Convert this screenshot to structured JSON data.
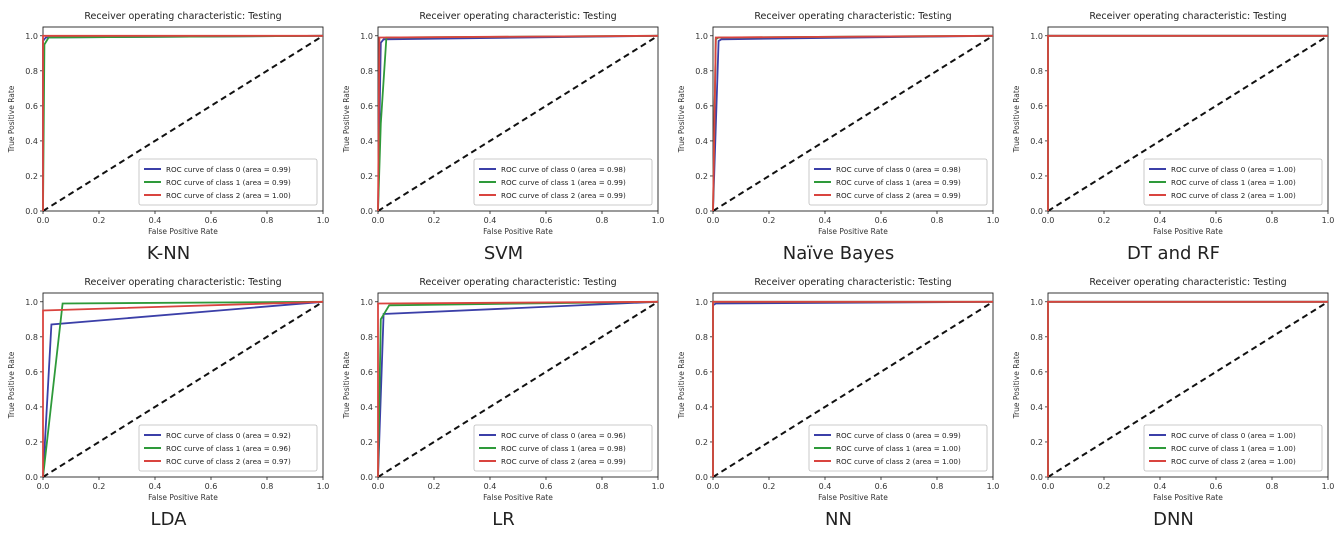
{
  "chart_data": [
    {
      "type": "line",
      "caption": "K-NN",
      "title": "Receiver operating characteristic: Testing",
      "xlabel": "False Positive Rate",
      "ylabel": "True Positive Rate",
      "xlim": [
        0,
        1.0
      ],
      "ylim": [
        0,
        1.05
      ],
      "xticks": [
        "0.0",
        "0.2",
        "0.4",
        "0.6",
        "0.8",
        "1.0"
      ],
      "yticks": [
        "0.0",
        "0.2",
        "0.4",
        "0.6",
        "0.8",
        "1.0"
      ],
      "legend_position": "lower-right",
      "series": [
        {
          "name": "ROC curve of class 0 (area = 0.99)",
          "color": "#3b3fa8",
          "x": [
            0,
            0,
            0.01,
            1.0
          ],
          "y": [
            0,
            0.97,
            0.99,
            1.0
          ]
        },
        {
          "name": "ROC curve of class 1 (area = 0.99)",
          "color": "#2e9a3a",
          "x": [
            0,
            0.005,
            0.02,
            1.0
          ],
          "y": [
            0,
            0.95,
            0.99,
            1.0
          ]
        },
        {
          "name": "ROC curve of class 2 (area = 1.00)",
          "color": "#d9443f",
          "x": [
            0,
            0,
            1.0
          ],
          "y": [
            0,
            1.0,
            1.0
          ]
        }
      ]
    },
    {
      "type": "line",
      "caption": "SVM",
      "title": "Receiver operating characteristic: Testing",
      "xlabel": "False Positive Rate",
      "ylabel": "True Positive Rate",
      "xlim": [
        0,
        1.0
      ],
      "ylim": [
        0,
        1.05
      ],
      "xticks": [
        "0.0",
        "0.2",
        "0.4",
        "0.6",
        "0.8",
        "1.0"
      ],
      "yticks": [
        "0.0",
        "0.2",
        "0.4",
        "0.6",
        "0.8",
        "1.0"
      ],
      "legend_position": "lower-right",
      "series": [
        {
          "name": "ROC curve of class 0 (area = 0.98)",
          "color": "#3b3fa8",
          "x": [
            0,
            0.01,
            0.02,
            1.0
          ],
          "y": [
            0,
            0.96,
            0.98,
            1.0
          ]
        },
        {
          "name": "ROC curve of class 1 (area = 0.99)",
          "color": "#2e9a3a",
          "x": [
            0,
            0.01,
            0.03,
            1.0
          ],
          "y": [
            0,
            0.5,
            0.99,
            1.0
          ]
        },
        {
          "name": "ROC curve of class 2 (area = 0.99)",
          "color": "#d9443f",
          "x": [
            0,
            0.005,
            1.0
          ],
          "y": [
            0,
            0.99,
            1.0
          ]
        }
      ]
    },
    {
      "type": "line",
      "caption": "Naïve Bayes",
      "title": "Receiver operating characteristic: Testing",
      "xlabel": "False Positive Rate",
      "ylabel": "True Positive Rate",
      "xlim": [
        0,
        1.0
      ],
      "ylim": [
        0,
        1.05
      ],
      "xticks": [
        "0.0",
        "0.2",
        "0.4",
        "0.6",
        "0.8",
        "1.0"
      ],
      "yticks": [
        "0.0",
        "0.2",
        "0.4",
        "0.6",
        "0.8",
        "1.0"
      ],
      "legend_position": "lower-right",
      "series": [
        {
          "name": "ROC curve of class 0 (area = 0.98)",
          "color": "#3b3fa8",
          "x": [
            0,
            0.02,
            0.03,
            1.0
          ],
          "y": [
            0,
            0.97,
            0.98,
            1.0
          ]
        },
        {
          "name": "ROC curve of class 1 (area = 0.99)",
          "color": "#2e9a3a",
          "x": [
            0,
            0.01,
            0.02,
            1.0
          ],
          "y": [
            0,
            0.98,
            0.99,
            1.0
          ]
        },
        {
          "name": "ROC curve of class 2 (area = 0.99)",
          "color": "#d9443f",
          "x": [
            0,
            0.01,
            1.0
          ],
          "y": [
            0,
            0.99,
            1.0
          ]
        }
      ]
    },
    {
      "type": "line",
      "caption": "DT and RF",
      "title": "Receiver operating characteristic: Testing",
      "xlabel": "False Positive Rate",
      "ylabel": "True Positive Rate",
      "xlim": [
        0,
        1.0
      ],
      "ylim": [
        0,
        1.05
      ],
      "xticks": [
        "0.0",
        "0.2",
        "0.4",
        "0.6",
        "0.8",
        "1.0"
      ],
      "yticks": [
        "0.0",
        "0.2",
        "0.4",
        "0.6",
        "0.8",
        "1.0"
      ],
      "legend_position": "lower-right",
      "series": [
        {
          "name": "ROC curve of class 0 (area = 1.00)",
          "color": "#3b3fa8",
          "x": [
            0,
            0,
            1.0
          ],
          "y": [
            0,
            1.0,
            1.0
          ]
        },
        {
          "name": "ROC curve of class 1 (area = 1.00)",
          "color": "#2e9a3a",
          "x": [
            0,
            0,
            1.0
          ],
          "y": [
            0,
            1.0,
            1.0
          ]
        },
        {
          "name": "ROC curve of class 2 (area = 1.00)",
          "color": "#d9443f",
          "x": [
            0,
            0,
            1.0
          ],
          "y": [
            0,
            1.0,
            1.0
          ]
        }
      ]
    },
    {
      "type": "line",
      "caption": "LDA",
      "title": "Receiver operating characteristic: Testing",
      "xlabel": "False Positive Rate",
      "ylabel": "True Positive Rate",
      "xlim": [
        0,
        1.0
      ],
      "ylim": [
        0,
        1.05
      ],
      "xticks": [
        "0.0",
        "0.2",
        "0.4",
        "0.6",
        "0.8",
        "1.0"
      ],
      "yticks": [
        "0.0",
        "0.2",
        "0.4",
        "0.6",
        "0.8",
        "1.0"
      ],
      "legend_position": "lower-right",
      "series": [
        {
          "name": "ROC curve of class 0 (area = 0.92)",
          "color": "#3b3fa8",
          "x": [
            0,
            0.03,
            1.0
          ],
          "y": [
            0,
            0.87,
            1.0
          ]
        },
        {
          "name": "ROC curve of class 1 (area = 0.96)",
          "color": "#2e9a3a",
          "x": [
            0,
            0.07,
            1.0
          ],
          "y": [
            0,
            0.99,
            1.0
          ]
        },
        {
          "name": "ROC curve of class 2 (area = 0.97)",
          "color": "#d9443f",
          "x": [
            0,
            0,
            1.0
          ],
          "y": [
            0,
            0.95,
            1.0
          ]
        }
      ]
    },
    {
      "type": "line",
      "caption": "LR",
      "title": "Receiver operating characteristic: Testing",
      "xlabel": "False Positive Rate",
      "ylabel": "True Positive Rate",
      "xlim": [
        0,
        1.0
      ],
      "ylim": [
        0,
        1.05
      ],
      "xticks": [
        "0.0",
        "0.2",
        "0.4",
        "0.6",
        "0.8",
        "1.0"
      ],
      "yticks": [
        "0.0",
        "0.2",
        "0.4",
        "0.6",
        "0.8",
        "1.0"
      ],
      "legend_position": "lower-right",
      "series": [
        {
          "name": "ROC curve of class 0 (area = 0.96)",
          "color": "#3b3fa8",
          "x": [
            0,
            0.02,
            1.0
          ],
          "y": [
            0,
            0.93,
            1.0
          ]
        },
        {
          "name": "ROC curve of class 1 (area = 0.98)",
          "color": "#2e9a3a",
          "x": [
            0,
            0.01,
            0.04,
            1.0
          ],
          "y": [
            0,
            0.9,
            0.98,
            1.0
          ]
        },
        {
          "name": "ROC curve of class 2 (area = 0.99)",
          "color": "#d9443f",
          "x": [
            0,
            0,
            1.0
          ],
          "y": [
            0,
            0.99,
            1.0
          ]
        }
      ]
    },
    {
      "type": "line",
      "caption": "NN",
      "title": "Receiver operating characteristic: Testing",
      "xlabel": "False Positive Rate",
      "ylabel": "True Positive Rate",
      "xlim": [
        0,
        1.0
      ],
      "ylim": [
        0,
        1.05
      ],
      "xticks": [
        "0.0",
        "0.2",
        "0.4",
        "0.6",
        "0.8",
        "1.0"
      ],
      "yticks": [
        "0.0",
        "0.2",
        "0.4",
        "0.6",
        "0.8",
        "1.0"
      ],
      "legend_position": "lower-right",
      "series": [
        {
          "name": "ROC curve of class 0 (area = 0.99)",
          "color": "#3b3fa8",
          "x": [
            0,
            0,
            0.01,
            1.0
          ],
          "y": [
            0,
            0.98,
            0.99,
            1.0
          ]
        },
        {
          "name": "ROC curve of class 1 (area = 1.00)",
          "color": "#2e9a3a",
          "x": [
            0,
            0,
            1.0
          ],
          "y": [
            0,
            1.0,
            1.0
          ]
        },
        {
          "name": "ROC curve of class 2 (area = 1.00)",
          "color": "#d9443f",
          "x": [
            0,
            0,
            1.0
          ],
          "y": [
            0,
            1.0,
            1.0
          ]
        }
      ]
    },
    {
      "type": "line",
      "caption": "DNN",
      "title": "Receiver operating characteristic: Testing",
      "xlabel": "False Positive Rate",
      "ylabel": "True Positive Rate",
      "xlim": [
        0,
        1.0
      ],
      "ylim": [
        0,
        1.05
      ],
      "xticks": [
        "0.0",
        "0.2",
        "0.4",
        "0.6",
        "0.8",
        "1.0"
      ],
      "yticks": [
        "0.0",
        "0.2",
        "0.4",
        "0.6",
        "0.8",
        "1.0"
      ],
      "legend_position": "lower-right",
      "series": [
        {
          "name": "ROC curve of class 0 (area = 1.00)",
          "color": "#3b3fa8",
          "x": [
            0,
            0,
            1.0
          ],
          "y": [
            0,
            1.0,
            1.0
          ]
        },
        {
          "name": "ROC curve of class 1 (area = 1.00)",
          "color": "#2e9a3a",
          "x": [
            0,
            0,
            1.0
          ],
          "y": [
            0,
            1.0,
            1.0
          ]
        },
        {
          "name": "ROC curve of class 2 (area = 1.00)",
          "color": "#d9443f",
          "x": [
            0,
            0,
            1.0
          ],
          "y": [
            0,
            1.0,
            1.0
          ]
        }
      ]
    }
  ]
}
